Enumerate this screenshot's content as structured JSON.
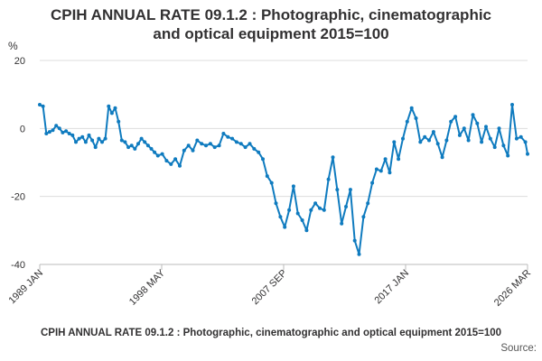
{
  "title_lines": [
    "CPIH ANNUAL RATE 09.1.2 : Photographic, cinematographic",
    "and optical equipment 2015=100"
  ],
  "footer": {
    "title": "CPIH ANNUAL RATE 09.1.2 : Photographic, cinematographic and optical equipment 2015=100",
    "source": "Source:"
  },
  "colors": {
    "line": "#0f7bbf",
    "grid": "#dddddd",
    "axis": "#bbbbbb",
    "text": "#323132"
  },
  "chart_data": {
    "type": "line",
    "ylabel": "%",
    "ylim": [
      -40,
      20
    ],
    "yticks": [
      20,
      0,
      -20,
      -40
    ],
    "xlim": [
      "1989-01",
      "2026-03"
    ],
    "xtick_labels": [
      "1989 JAN",
      "1998 MAY",
      "2007 SEP",
      "2017 JAN",
      "2026 MAR"
    ],
    "grid": true,
    "series": [
      {
        "points": [
          [
            "1989-01",
            7.0
          ],
          [
            "1989-04",
            6.5
          ],
          [
            "1989-07",
            -1.5
          ],
          [
            "1989-10",
            -1.0
          ],
          [
            "1990-01",
            -0.5
          ],
          [
            "1990-04",
            0.8
          ],
          [
            "1990-07",
            0.0
          ],
          [
            "1990-10",
            -1.2
          ],
          [
            "1991-01",
            -0.8
          ],
          [
            "1991-04",
            -1.5
          ],
          [
            "1991-07",
            -2.0
          ],
          [
            "1991-10",
            -4.0
          ],
          [
            "1992-01",
            -3.0
          ],
          [
            "1992-04",
            -2.5
          ],
          [
            "1992-07",
            -4.0
          ],
          [
            "1992-10",
            -2.0
          ],
          [
            "1993-01",
            -3.5
          ],
          [
            "1993-04",
            -5.5
          ],
          [
            "1993-07",
            -3.0
          ],
          [
            "1993-10",
            -4.0
          ],
          [
            "1994-01",
            -3.0
          ],
          [
            "1994-04",
            6.5
          ],
          [
            "1994-07",
            4.5
          ],
          [
            "1994-10",
            6.0
          ],
          [
            "1995-01",
            2.0
          ],
          [
            "1995-04",
            -3.5
          ],
          [
            "1995-07",
            -4.0
          ],
          [
            "1995-10",
            -5.5
          ],
          [
            "1996-01",
            -5.0
          ],
          [
            "1996-04",
            -6.0
          ],
          [
            "1996-07",
            -4.5
          ],
          [
            "1996-10",
            -3.0
          ],
          [
            "1997-01",
            -4.0
          ],
          [
            "1997-04",
            -5.0
          ],
          [
            "1997-07",
            -6.0
          ],
          [
            "1997-10",
            -7.0
          ],
          [
            "1998-01",
            -8.0
          ],
          [
            "1998-05",
            -7.5
          ],
          [
            "1998-09",
            -9.5
          ],
          [
            "1999-01",
            -10.5
          ],
          [
            "1999-05",
            -9.0
          ],
          [
            "1999-09",
            -11.0
          ],
          [
            "2000-01",
            -6.5
          ],
          [
            "2000-05",
            -5.0
          ],
          [
            "2000-09",
            -6.5
          ],
          [
            "2001-01",
            -3.5
          ],
          [
            "2001-05",
            -4.5
          ],
          [
            "2001-09",
            -5.0
          ],
          [
            "2002-01",
            -4.5
          ],
          [
            "2002-05",
            -5.5
          ],
          [
            "2002-09",
            -5.0
          ],
          [
            "2003-01",
            -1.5
          ],
          [
            "2003-05",
            -2.5
          ],
          [
            "2003-09",
            -3.0
          ],
          [
            "2004-01",
            -4.0
          ],
          [
            "2004-05",
            -4.5
          ],
          [
            "2004-09",
            -5.5
          ],
          [
            "2005-01",
            -4.5
          ],
          [
            "2005-05",
            -6.0
          ],
          [
            "2005-09",
            -7.0
          ],
          [
            "2006-01",
            -9.0
          ],
          [
            "2006-05",
            -14.0
          ],
          [
            "2006-09",
            -16.0
          ],
          [
            "2007-01",
            -22.0
          ],
          [
            "2007-05",
            -26.0
          ],
          [
            "2007-09",
            -29.0
          ],
          [
            "2008-01",
            -24.0
          ],
          [
            "2008-05",
            -17.0
          ],
          [
            "2008-09",
            -25.0
          ],
          [
            "2009-01",
            -27.0
          ],
          [
            "2009-05",
            -30.0
          ],
          [
            "2009-09",
            -24.0
          ],
          [
            "2010-01",
            -22.0
          ],
          [
            "2010-05",
            -23.5
          ],
          [
            "2010-09",
            -24.0
          ],
          [
            "2011-01",
            -15.0
          ],
          [
            "2011-05",
            -8.5
          ],
          [
            "2011-09",
            -18.0
          ],
          [
            "2012-01",
            -28.0
          ],
          [
            "2012-05",
            -23.0
          ],
          [
            "2012-09",
            -18.0
          ],
          [
            "2013-01",
            -33.0
          ],
          [
            "2013-05",
            -37.0
          ],
          [
            "2013-09",
            -26.0
          ],
          [
            "2014-01",
            -22.0
          ],
          [
            "2014-05",
            -16.0
          ],
          [
            "2014-09",
            -12.0
          ],
          [
            "2015-01",
            -12.5
          ],
          [
            "2015-05",
            -9.0
          ],
          [
            "2015-09",
            -13.0
          ],
          [
            "2016-01",
            -4.0
          ],
          [
            "2016-05",
            -9.0
          ],
          [
            "2016-09",
            -3.0
          ],
          [
            "2017-01",
            2.0
          ],
          [
            "2017-05",
            6.0
          ],
          [
            "2017-09",
            3.0
          ],
          [
            "2018-01",
            -4.0
          ],
          [
            "2018-05",
            -2.5
          ],
          [
            "2018-09",
            -3.5
          ],
          [
            "2019-01",
            -1.0
          ],
          [
            "2019-05",
            -4.5
          ],
          [
            "2019-09",
            -8.5
          ],
          [
            "2020-01",
            -3.5
          ],
          [
            "2020-05",
            2.0
          ],
          [
            "2020-09",
            3.5
          ],
          [
            "2021-01",
            -2.0
          ],
          [
            "2021-05",
            0.0
          ],
          [
            "2021-09",
            -3.5
          ],
          [
            "2022-01",
            4.0
          ],
          [
            "2022-05",
            1.5
          ],
          [
            "2022-09",
            -4.0
          ],
          [
            "2023-01",
            0.5
          ],
          [
            "2023-05",
            -3.0
          ],
          [
            "2023-09",
            -5.5
          ],
          [
            "2024-01",
            0.0
          ],
          [
            "2024-05",
            -5.0
          ],
          [
            "2024-09",
            -8.0
          ],
          [
            "2025-01",
            7.0
          ],
          [
            "2025-05",
            -3.0
          ],
          [
            "2025-09",
            -2.5
          ],
          [
            "2026-01",
            -4.0
          ],
          [
            "2026-03",
            -7.5
          ]
        ]
      }
    ]
  }
}
